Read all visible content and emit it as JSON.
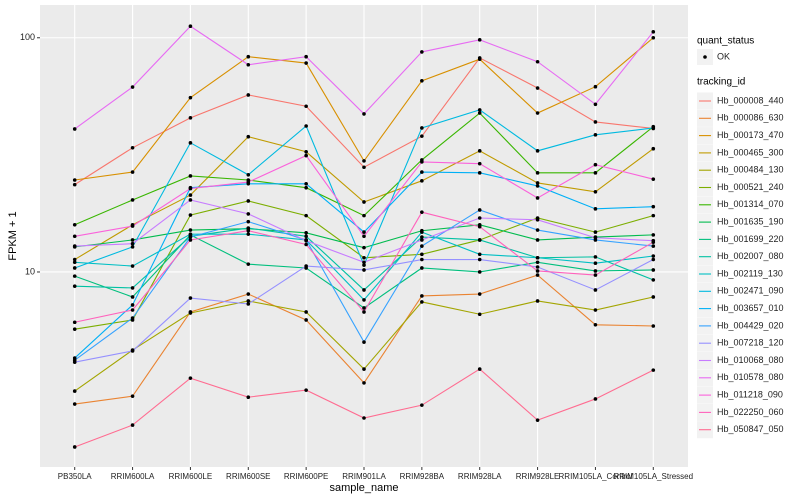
{
  "chart_data": {
    "type": "line",
    "x_label": "sample_name",
    "y_label": "FPKM + 1",
    "log_y": true,
    "grid": true,
    "categories": [
      "PB350LA",
      "RRIM600LA",
      "RRIM600LE",
      "RRIM600SE",
      "RRIM600PE",
      "RRIM901LA",
      "RRIM928BA",
      "RRIM928LA",
      "RRIM928LE",
      "RRIM105LA_Control",
      "RRIM105LA_Stressed"
    ],
    "ylim": [
      1.47,
      138
    ],
    "yticks": [
      10,
      100
    ],
    "point_legend": {
      "title": "quant_status",
      "labels": [
        "OK"
      ]
    },
    "legend_title": "tracking_id",
    "series": [
      {
        "name": "Hb_000008_440",
        "color": "#F8766D",
        "values": [
          23.6,
          33.9,
          45.5,
          57,
          51,
          28,
          38,
          82,
          61,
          43.7,
          41
        ]
      },
      {
        "name": "Hb_000086_630",
        "color": "#EA8331",
        "values": [
          2.73,
          2.95,
          6.75,
          8.05,
          6.24,
          3.36,
          7.9,
          8.05,
          9.7,
          5.95,
          5.88
        ]
      },
      {
        "name": "Hb_000173_470",
        "color": "#D89000",
        "values": [
          24.7,
          26.7,
          55.5,
          83,
          78,
          29.8,
          65.5,
          81,
          47.7,
          61.8,
          100
        ]
      },
      {
        "name": "Hb_000465_300",
        "color": "#C09B00",
        "values": [
          11.3,
          15.9,
          21.3,
          37.8,
          32.6,
          19.9,
          24.5,
          32.9,
          24,
          22,
          33.6
        ]
      },
      {
        "name": "Hb_000484_130",
        "color": "#A3A500",
        "values": [
          3.1,
          4.64,
          6.68,
          7.52,
          6.75,
          3.85,
          7.45,
          6.6,
          7.52,
          6.88,
          7.82
        ]
      },
      {
        "name": "Hb_000521_240",
        "color": "#7CAE00",
        "values": [
          5.7,
          6.24,
          17.5,
          20.1,
          17.4,
          11.5,
          11.9,
          13.7,
          17,
          14.8,
          17.4
        ]
      },
      {
        "name": "Hb_001314_070",
        "color": "#39B600",
        "values": [
          15.9,
          20.3,
          25.7,
          24.7,
          22.9,
          17.4,
          30.1,
          47.7,
          26.5,
          26.5,
          41.7
        ]
      },
      {
        "name": "Hb_001635_190",
        "color": "#00BB4E",
        "values": [
          12.8,
          13.7,
          15.1,
          15.3,
          14.7,
          12.7,
          15,
          15.9,
          13.7,
          14.1,
          14.4
        ]
      },
      {
        "name": "Hb_001699_220",
        "color": "#00BF7D",
        "values": [
          9.6,
          7.82,
          14.4,
          10.8,
          10.4,
          7.02,
          10.4,
          10,
          11,
          10.1,
          10.2
        ]
      },
      {
        "name": "Hb_002007_080",
        "color": "#00C1A3",
        "values": [
          8.7,
          8.55,
          14.2,
          15.4,
          14.2,
          8.38,
          14.1,
          13.7,
          11.5,
          11.6,
          9.25
        ]
      },
      {
        "name": "Hb_002119_130",
        "color": "#00BFC4",
        "values": [
          11,
          10.6,
          14.5,
          14.5,
          13.7,
          7.6,
          14.8,
          11.9,
          11.5,
          10.9,
          11.7
        ]
      },
      {
        "name": "Hb_002471_090",
        "color": "#00BAE0",
        "values": [
          10.4,
          12.8,
          35.6,
          26,
          42,
          10.7,
          41.2,
          49.2,
          32.9,
          38.5,
          41.2
        ]
      },
      {
        "name": "Hb_003657_010",
        "color": "#00B0F6",
        "values": [
          4.29,
          7.23,
          22.9,
          23.8,
          23.8,
          14.8,
          26.7,
          26.5,
          23.3,
          18.6,
          19
        ]
      },
      {
        "name": "Hb_004429_020",
        "color": "#35A2FF",
        "values": [
          4.2,
          6.36,
          14.1,
          16.4,
          13.7,
          5.02,
          12.9,
          18.4,
          15.1,
          13.7,
          12.9
        ]
      },
      {
        "name": "Hb_007218_120",
        "color": "#9590FF",
        "values": [
          4.12,
          4.6,
          7.74,
          7.3,
          10.6,
          10.2,
          11.3,
          11.3,
          10.5,
          8.38,
          11.3
        ]
      },
      {
        "name": "Hb_010068_080",
        "color": "#C77CFF",
        "values": [
          12.9,
          13.2,
          20.3,
          17.7,
          13.6,
          11,
          13.7,
          17,
          16.7,
          14,
          13.6
        ]
      },
      {
        "name": "Hb_010578_080",
        "color": "#E76BF3",
        "values": [
          40.8,
          61.6,
          112,
          76.7,
          83,
          47.3,
          87,
          98,
          79,
          52,
          106
        ]
      },
      {
        "name": "Hb_011218_090",
        "color": "#FA62DB",
        "values": [
          14.2,
          15.7,
          22.7,
          24.2,
          31.4,
          14.2,
          29.5,
          29,
          20.7,
          28.7,
          24.9
        ]
      },
      {
        "name": "Hb_022250_060",
        "color": "#FF62BC",
        "values": [
          6.1,
          6.88,
          13.7,
          15,
          13.1,
          6.75,
          18,
          15.6,
          10.1,
          9.7,
          13.4
        ]
      },
      {
        "name": "Hb_050847_050",
        "color": "#FF6C91",
        "values": [
          1.79,
          2.22,
          3.52,
          2.92,
          3.13,
          2.38,
          2.7,
          3.85,
          2.33,
          2.87,
          3.81
        ]
      }
    ]
  }
}
